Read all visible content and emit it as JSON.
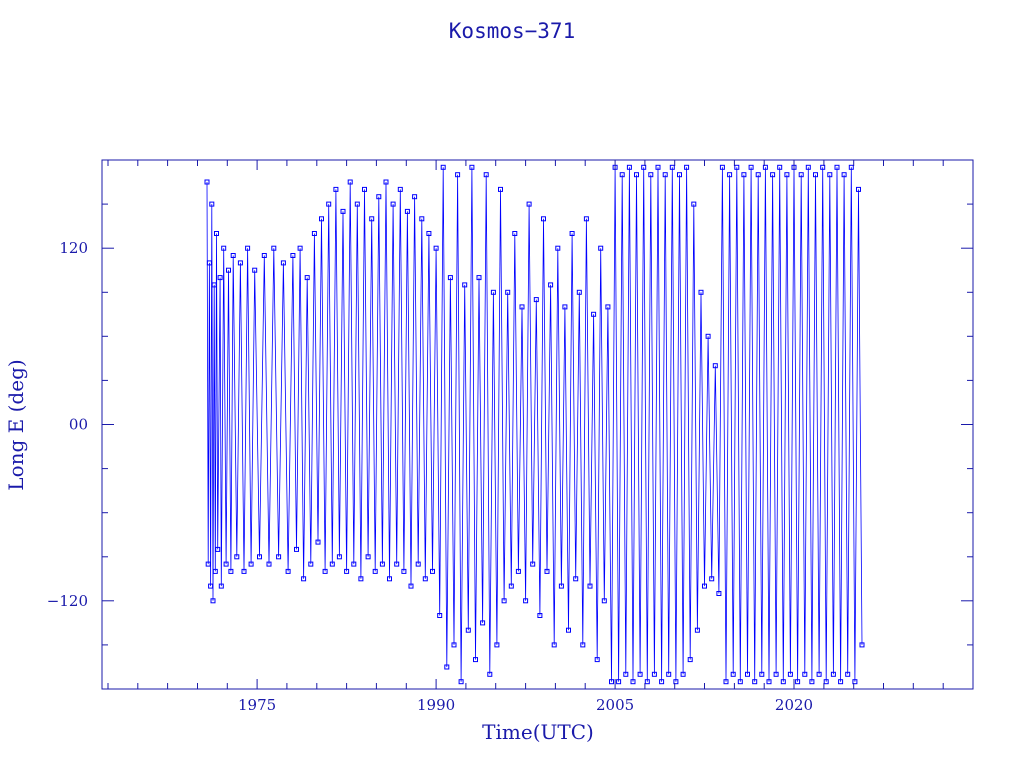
{
  "chart_data": {
    "type": "line",
    "title": "Kosmos−371",
    "xlabel": "Time(UTC)",
    "ylabel": "Long E (deg)",
    "x_unit": "year",
    "xlim": [
      1962,
      2035
    ],
    "ylim": [
      -180,
      180
    ],
    "x_ticks": [
      1975,
      1990,
      2005,
      2020
    ],
    "x_tick_labels": [
      "1975",
      "1990",
      "2005",
      "2020"
    ],
    "y_ticks": [
      120,
      0,
      -120
    ],
    "y_tick_labels": [
      "120",
      "00",
      "−120"
    ],
    "x_minor_step": 2.5,
    "y_minor_step": 30,
    "grid": false,
    "marker": "square",
    "colors": {
      "series": "#0000ff",
      "axes": "#1a1aaa",
      "background": "#ffffff"
    },
    "series": [
      {
        "approximate": true,
        "data": [
          [
            1970.8,
            165
          ],
          [
            1970.9,
            -95
          ],
          [
            1971.0,
            110
          ],
          [
            1971.1,
            -110
          ],
          [
            1971.2,
            150
          ],
          [
            1971.3,
            -120
          ],
          [
            1971.4,
            95
          ],
          [
            1971.5,
            -100
          ],
          [
            1971.6,
            130
          ],
          [
            1971.7,
            -85
          ],
          [
            1971.9,
            100
          ],
          [
            1972.0,
            -110
          ],
          [
            1972.2,
            120
          ],
          [
            1972.4,
            -95
          ],
          [
            1972.6,
            105
          ],
          [
            1972.8,
            -100
          ],
          [
            1973.0,
            115
          ],
          [
            1973.3,
            -90
          ],
          [
            1973.6,
            110
          ],
          [
            1973.9,
            -100
          ],
          [
            1974.2,
            120
          ],
          [
            1974.5,
            -95
          ],
          [
            1974.8,
            105
          ],
          [
            1975.2,
            -90
          ],
          [
            1975.6,
            115
          ],
          [
            1976.0,
            -95
          ],
          [
            1976.4,
            120
          ],
          [
            1976.8,
            -90
          ],
          [
            1977.2,
            110
          ],
          [
            1977.6,
            -100
          ],
          [
            1978.0,
            115
          ],
          [
            1978.3,
            -85
          ],
          [
            1978.6,
            120
          ],
          [
            1978.9,
            -105
          ],
          [
            1979.2,
            100
          ],
          [
            1979.5,
            -95
          ],
          [
            1979.8,
            130
          ],
          [
            1980.1,
            -80
          ],
          [
            1980.4,
            140
          ],
          [
            1980.7,
            -100
          ],
          [
            1981.0,
            150
          ],
          [
            1981.3,
            -95
          ],
          [
            1981.6,
            160
          ],
          [
            1981.9,
            -90
          ],
          [
            1982.2,
            145
          ],
          [
            1982.5,
            -100
          ],
          [
            1982.8,
            165
          ],
          [
            1983.1,
            -95
          ],
          [
            1983.4,
            150
          ],
          [
            1983.7,
            -105
          ],
          [
            1984.0,
            160
          ],
          [
            1984.3,
            -90
          ],
          [
            1984.6,
            140
          ],
          [
            1984.9,
            -100
          ],
          [
            1985.2,
            155
          ],
          [
            1985.5,
            -95
          ],
          [
            1985.8,
            165
          ],
          [
            1986.1,
            -105
          ],
          [
            1986.4,
            150
          ],
          [
            1986.7,
            -95
          ],
          [
            1987.0,
            160
          ],
          [
            1987.3,
            -100
          ],
          [
            1987.6,
            145
          ],
          [
            1987.9,
            -110
          ],
          [
            1988.2,
            155
          ],
          [
            1988.5,
            -95
          ],
          [
            1988.8,
            140
          ],
          [
            1989.1,
            -105
          ],
          [
            1989.4,
            130
          ],
          [
            1989.7,
            -100
          ],
          [
            1990.0,
            120
          ],
          [
            1990.3,
            -130
          ],
          [
            1990.6,
            175
          ],
          [
            1990.9,
            -165
          ],
          [
            1991.2,
            100
          ],
          [
            1991.5,
            -150
          ],
          [
            1991.8,
            170
          ],
          [
            1992.1,
            -175
          ],
          [
            1992.4,
            95
          ],
          [
            1992.7,
            -140
          ],
          [
            1993.0,
            175
          ],
          [
            1993.3,
            -160
          ],
          [
            1993.6,
            100
          ],
          [
            1993.9,
            -135
          ],
          [
            1994.2,
            170
          ],
          [
            1994.5,
            -170
          ],
          [
            1994.8,
            90
          ],
          [
            1995.1,
            -150
          ],
          [
            1995.4,
            160
          ],
          [
            1995.7,
            -120
          ],
          [
            1996.0,
            90
          ],
          [
            1996.3,
            -110
          ],
          [
            1996.6,
            130
          ],
          [
            1996.9,
            -100
          ],
          [
            1997.2,
            80
          ],
          [
            1997.5,
            -120
          ],
          [
            1997.8,
            150
          ],
          [
            1998.1,
            -95
          ],
          [
            1998.4,
            85
          ],
          [
            1998.7,
            -130
          ],
          [
            1999.0,
            140
          ],
          [
            1999.3,
            -100
          ],
          [
            1999.6,
            95
          ],
          [
            1999.9,
            -150
          ],
          [
            2000.2,
            120
          ],
          [
            2000.5,
            -110
          ],
          [
            2000.8,
            80
          ],
          [
            2001.1,
            -140
          ],
          [
            2001.4,
            130
          ],
          [
            2001.7,
            -105
          ],
          [
            2002.0,
            90
          ],
          [
            2002.3,
            -150
          ],
          [
            2002.6,
            140
          ],
          [
            2002.9,
            -110
          ],
          [
            2003.2,
            75
          ],
          [
            2003.5,
            -160
          ],
          [
            2003.8,
            120
          ],
          [
            2004.1,
            -120
          ],
          [
            2004.4,
            80
          ],
          [
            2004.7,
            -175
          ],
          [
            2005.0,
            175
          ],
          [
            2005.3,
            -175
          ],
          [
            2005.6,
            170
          ],
          [
            2005.9,
            -170
          ],
          [
            2006.2,
            175
          ],
          [
            2006.5,
            -175
          ],
          [
            2006.8,
            170
          ],
          [
            2007.1,
            -170
          ],
          [
            2007.4,
            175
          ],
          [
            2007.7,
            -175
          ],
          [
            2008.0,
            170
          ],
          [
            2008.3,
            -170
          ],
          [
            2008.6,
            175
          ],
          [
            2008.9,
            -175
          ],
          [
            2009.2,
            170
          ],
          [
            2009.5,
            -170
          ],
          [
            2009.8,
            175
          ],
          [
            2010.1,
            -175
          ],
          [
            2010.4,
            170
          ],
          [
            2010.7,
            -170
          ],
          [
            2011.0,
            175
          ],
          [
            2011.3,
            -160
          ],
          [
            2011.6,
            150
          ],
          [
            2011.9,
            -140
          ],
          [
            2012.2,
            90
          ],
          [
            2012.5,
            -110
          ],
          [
            2012.8,
            60
          ],
          [
            2013.1,
            -105
          ],
          [
            2013.4,
            40
          ],
          [
            2013.7,
            -115
          ],
          [
            2014.0,
            175
          ],
          [
            2014.3,
            -175
          ],
          [
            2014.6,
            170
          ],
          [
            2014.9,
            -170
          ],
          [
            2015.2,
            175
          ],
          [
            2015.5,
            -175
          ],
          [
            2015.8,
            170
          ],
          [
            2016.1,
            -170
          ],
          [
            2016.4,
            175
          ],
          [
            2016.7,
            -175
          ],
          [
            2017.0,
            170
          ],
          [
            2017.3,
            -170
          ],
          [
            2017.6,
            175
          ],
          [
            2017.9,
            -175
          ],
          [
            2018.2,
            170
          ],
          [
            2018.5,
            -170
          ],
          [
            2018.8,
            175
          ],
          [
            2019.1,
            -175
          ],
          [
            2019.4,
            170
          ],
          [
            2019.7,
            -170
          ],
          [
            2020.0,
            175
          ],
          [
            2020.3,
            -175
          ],
          [
            2020.6,
            170
          ],
          [
            2020.9,
            -170
          ],
          [
            2021.2,
            175
          ],
          [
            2021.5,
            -175
          ],
          [
            2021.8,
            170
          ],
          [
            2022.1,
            -170
          ],
          [
            2022.4,
            175
          ],
          [
            2022.7,
            -175
          ],
          [
            2023.0,
            170
          ],
          [
            2023.3,
            -170
          ],
          [
            2023.6,
            175
          ],
          [
            2023.9,
            -175
          ],
          [
            2024.2,
            170
          ],
          [
            2024.5,
            -170
          ],
          [
            2024.8,
            175
          ],
          [
            2025.1,
            -175
          ],
          [
            2025.4,
            160
          ],
          [
            2025.7,
            -150
          ]
        ]
      }
    ]
  }
}
